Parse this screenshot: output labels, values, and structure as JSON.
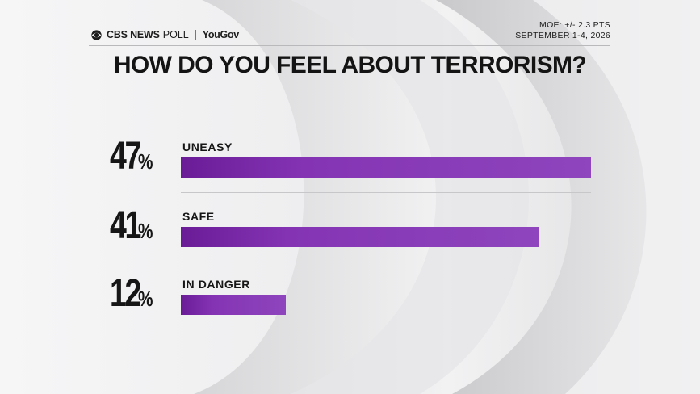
{
  "brand": {
    "network": "CBS NEWS",
    "poll_word": "POLL",
    "partner": "YouGov"
  },
  "meta": {
    "moe": "MOE: +/- 2.3 PTS",
    "dates": "SEPTEMBER 1-4, 2026"
  },
  "colors": {
    "bar": "#8e45bd",
    "bar_dark": "#6a1c97",
    "text": "#161616",
    "background": "#e9e9ea"
  },
  "chart_data": {
    "type": "bar",
    "title": "HOW DO YOU FEEL ABOUT TERRORISM?",
    "orientation": "horizontal",
    "categories": [
      "UNEASY",
      "SAFE",
      "IN DANGER"
    ],
    "values": [
      47,
      41,
      12
    ],
    "value_labels": [
      "47",
      "41",
      "12"
    ],
    "unit": "%",
    "xlim": [
      0,
      47
    ],
    "grid": false,
    "legend": "none"
  }
}
